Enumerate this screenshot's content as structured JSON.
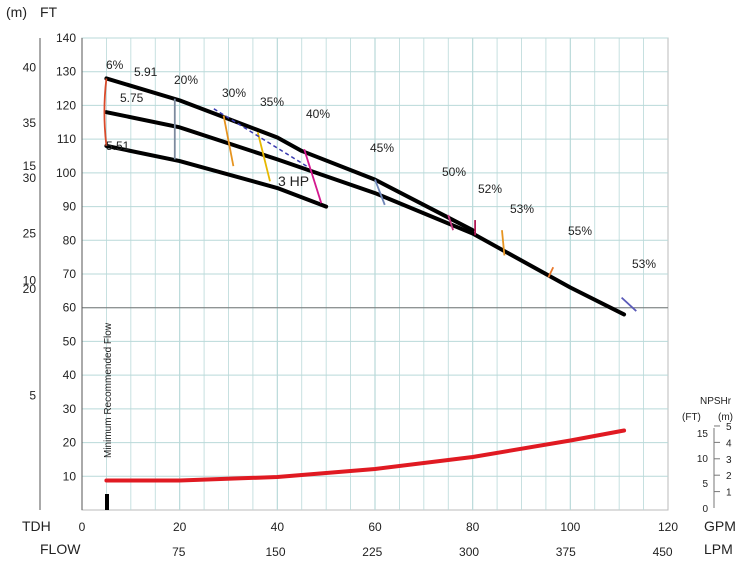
{
  "chart_data": {
    "type": "line",
    "axes": {
      "unit_m_label": "(m)",
      "unit_ft_label": "FT",
      "tdh_label": "TDH",
      "flow_label": "FLOW",
      "gpm_label": "GPM",
      "lpm_label": "LPM",
      "ft_ticks": [
        10,
        20,
        30,
        40,
        50,
        60,
        70,
        80,
        90,
        100,
        110,
        120,
        130,
        140
      ],
      "ft_range": [
        0,
        140
      ],
      "m_ticks": [
        5,
        10,
        15,
        20,
        25,
        30,
        35,
        40
      ],
      "gpm_ticks": [
        0,
        20,
        40,
        60,
        80,
        100,
        120
      ],
      "gpm_range": [
        0,
        120
      ],
      "lpm_ticks": [
        75,
        150,
        225,
        300,
        375,
        450
      ],
      "grid": true
    },
    "series": [
      {
        "name": "5.91",
        "x": [
          0,
          20,
          40,
          45,
          60,
          80
        ],
        "y": [
          128,
          121.5,
          110.5,
          106.5,
          98,
          83
        ]
      },
      {
        "name": "5.75",
        "x": [
          0,
          20,
          40,
          60,
          80,
          100,
          111
        ],
        "y": [
          118,
          113.5,
          104,
          94,
          82,
          66,
          58
        ]
      },
      {
        "name": "5.51",
        "x": [
          0,
          20,
          40,
          50
        ],
        "y": [
          108,
          103.5,
          95.5,
          90
        ]
      }
    ],
    "efficiency_labels": [
      "6%",
      "20%",
      "30%",
      "35%",
      "40%",
      "45%",
      "50%",
      "52%",
      "53%",
      "55%",
      "53%"
    ],
    "hp_label": "3 HP",
    "min_flow_label": "Minimum Recommended Flow",
    "min_flow_gpm": 5,
    "npshr": {
      "title": "NPSHr",
      "ft_label": "(FT)",
      "m_label": "(m)",
      "ft_ticks": [
        0,
        5,
        10,
        15
      ],
      "m_ticks": [
        1,
        2,
        3,
        4,
        5
      ],
      "x": [
        5,
        20,
        40,
        60,
        80,
        100,
        111
      ],
      "y_ft": [
        5.5,
        5.5,
        6.2,
        7.8,
        10.2,
        13.5,
        15.5
      ]
    },
    "colors": {
      "curve": "#000000",
      "npshr": "#e01a22",
      "grid": "#b9d9d9",
      "eff_20": "#7c8a9e",
      "eff_30": "#e69420",
      "eff_35": "#e6b800",
      "eff_40": "#d4198f",
      "eff_45": "#6f86b8",
      "eff_50": "#c2347f",
      "eff_52": "#b01854",
      "eff_53": "#e69420",
      "eff_55": "#e8782a",
      "eff_53b": "#5a5ab8",
      "hp_line": "#3b3bb0",
      "trim_line": "#d84a2a"
    }
  }
}
